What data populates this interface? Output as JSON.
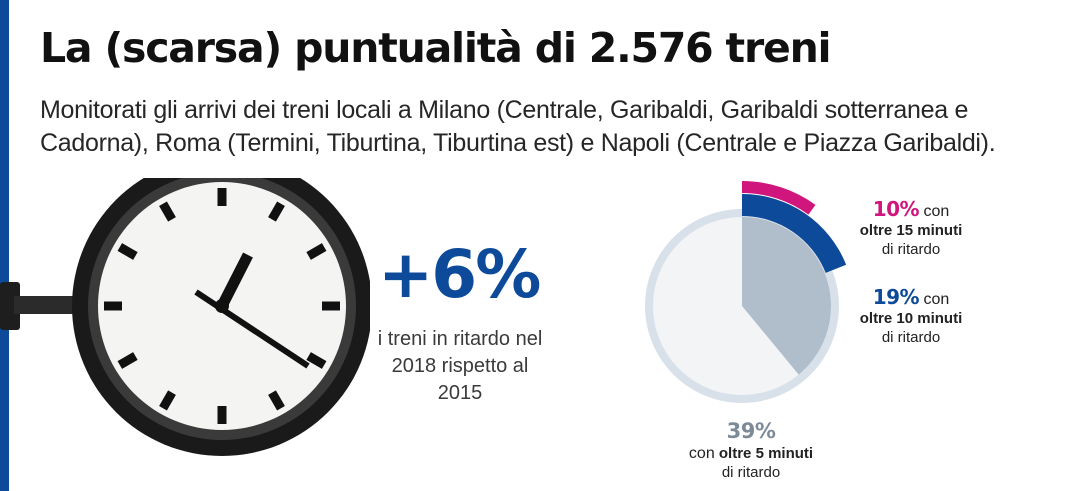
{
  "header": {
    "title": "La (scarsa) puntualità di 2.576 treni",
    "subtitle": "Monitorati gli arrivi dei treni locali a Milano (Centrale, Garibaldi, Garibaldi sotterranea e Cadorna), Roma (Termini, Tiburtina, Tiburtina est) e Napoli (Centrale e Piazza Garibaldi)."
  },
  "stat": {
    "value": "+6%",
    "description": "i treni in ritardo nel 2018 rispetto al 2015"
  },
  "chart_data": {
    "type": "pie",
    "unit": "%",
    "slices": [
      {
        "value": 39,
        "label": "39%",
        "with": "con",
        "threshold": "oltre 5 minuti",
        "delay": "di ritardo",
        "color": "#b0bdcb"
      },
      {
        "value": 19,
        "label": "19%",
        "with": "con",
        "threshold": "oltre 10 minuti",
        "delay": "di ritardo",
        "color": "#0d4a9a"
      },
      {
        "value": 10,
        "label": "10%",
        "with": "con",
        "threshold": "oltre 15 minuti",
        "delay": "di ritardo",
        "color": "#d0157c"
      }
    ],
    "colors": {
      "ring": "#d8e1ea",
      "background_disc": "#f3f4f6"
    }
  }
}
